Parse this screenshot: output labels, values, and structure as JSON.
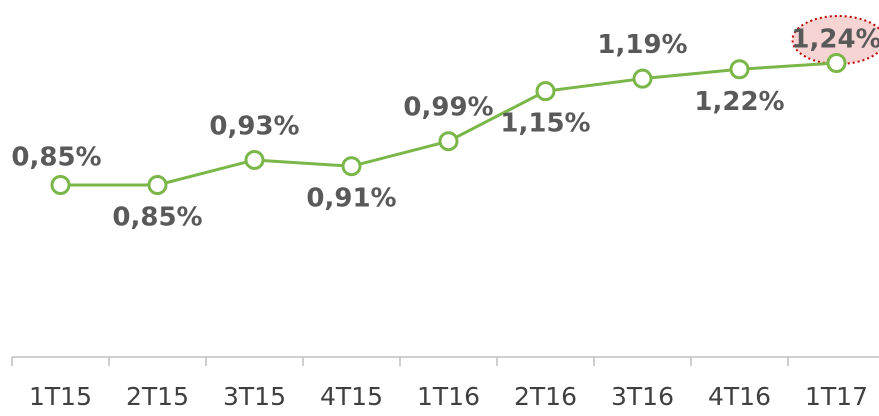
{
  "chart_data": {
    "type": "line",
    "categories": [
      "1T15",
      "2T15",
      "3T15",
      "4T15",
      "1T16",
      "2T16",
      "3T16",
      "4T16",
      "1T17"
    ],
    "series": [
      {
        "color": "#7ab648",
        "values": [
          0.85,
          0.85,
          0.93,
          0.91,
          0.99,
          1.15,
          1.19,
          1.22,
          1.24
        ],
        "value_labels": [
          "0,85%",
          "0,85%",
          "0,93%",
          "0,91%",
          "0,99%",
          "1,15%",
          "1,19%",
          "1,22%",
          "1,24%"
        ]
      }
    ]
  }
}
